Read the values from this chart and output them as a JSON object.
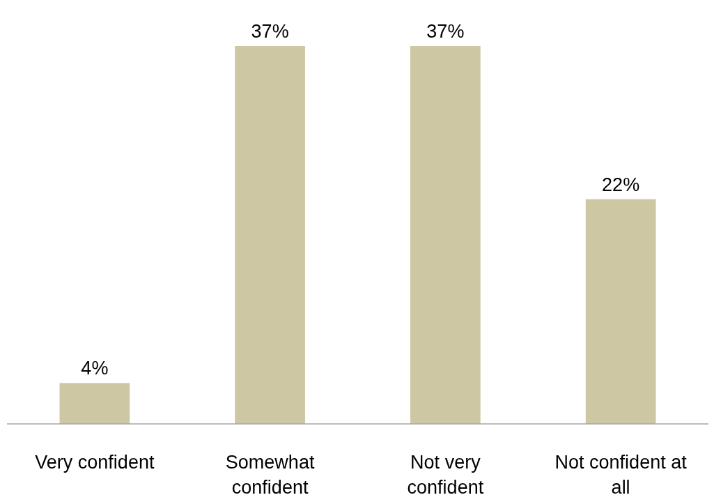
{
  "chart_data": {
    "type": "bar",
    "categories": [
      "Very confident",
      "Somewhat confident",
      "Not very confident",
      "Not confident at all"
    ],
    "values": [
      4,
      37,
      37,
      22
    ],
    "value_labels": [
      "4%",
      "37%",
      "37%",
      "22%"
    ],
    "color": "#cdc7a4"
  }
}
